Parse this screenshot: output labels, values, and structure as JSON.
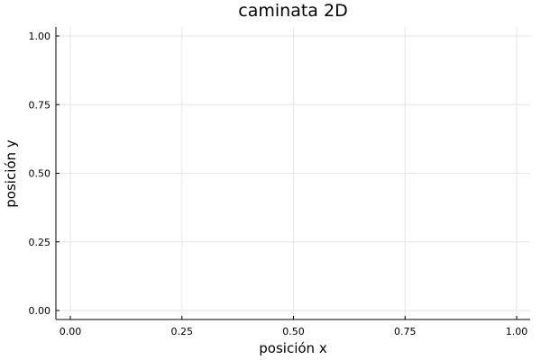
{
  "chart_data": {
    "type": "line",
    "title": "caminata 2D",
    "xlabel": "posición x",
    "ylabel": "posición y",
    "xlim": [
      0,
      1
    ],
    "ylim": [
      0,
      1
    ],
    "xticks": [
      0,
      0.25,
      0.5,
      0.75,
      1
    ],
    "yticks": [
      0,
      0.25,
      0.5,
      0.75,
      1
    ],
    "xtick_labels": [
      "0.00",
      "0.25",
      "0.50",
      "0.75",
      "1.00"
    ],
    "ytick_labels": [
      "0.00",
      "0.25",
      "0.50",
      "0.75",
      "1.00"
    ],
    "grid": true,
    "legend": "none",
    "series": []
  }
}
